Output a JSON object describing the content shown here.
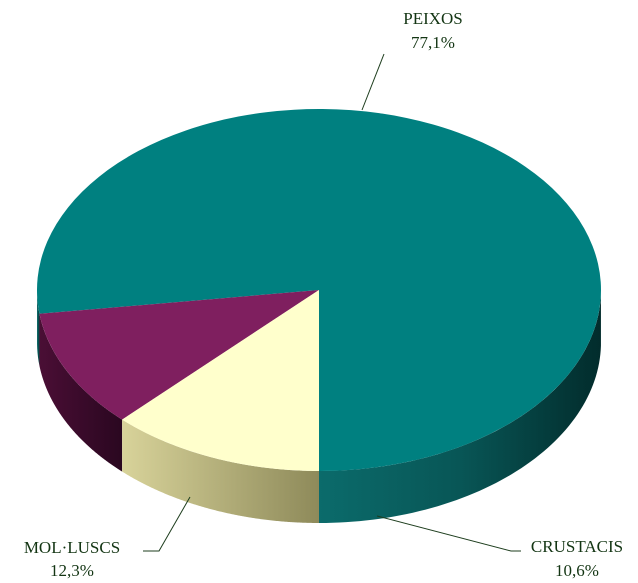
{
  "chart_data": {
    "type": "pie",
    "title": "",
    "slices": [
      {
        "label": "PEIXOS",
        "value": 77.1,
        "value_label": "77,1%",
        "color": "#008080"
      },
      {
        "label": "CRUSTACIS",
        "value": 10.6,
        "value_label": "10,6%",
        "color": "#7f1f5f"
      },
      {
        "label": "MOL·LUSCS",
        "value": 12.3,
        "value_label": "12,3%",
        "color": "#ffffcc"
      }
    ],
    "style": "3d"
  }
}
